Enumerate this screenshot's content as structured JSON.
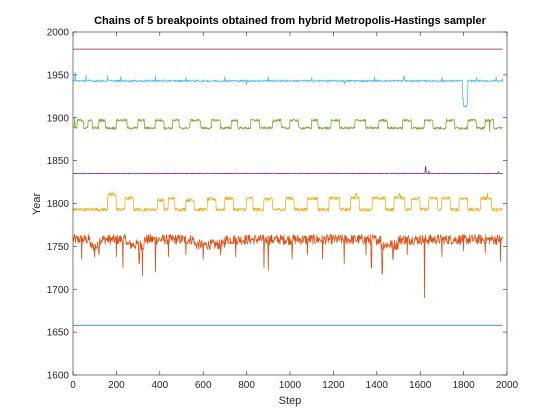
{
  "chart_data": {
    "type": "line",
    "title": "Chains of 5 breakpoints obtained from hybrid Metropolis-Hastings sampler",
    "xlabel": "Step",
    "ylabel": "Year",
    "xlim": [
      0,
      2000
    ],
    "ylim": [
      1600,
      2000
    ],
    "xticks": [
      0,
      200,
      400,
      600,
      800,
      1000,
      1200,
      1400,
      1600,
      1800,
      2000
    ],
    "yticks": [
      1600,
      1650,
      1700,
      1750,
      1800,
      1850,
      1900,
      1950,
      2000
    ],
    "grid": false,
    "legend": "none",
    "steps": 1980,
    "series": [
      {
        "color": "#0072bd",
        "base": 1658,
        "noise": 0,
        "segments": [],
        "spikes": []
      },
      {
        "color": "#d95319",
        "base": 1758,
        "noise": 6,
        "segments": [
          [
            80,
            120,
            1750
          ],
          [
            250,
            330,
            1752
          ],
          [
            560,
            700,
            1752
          ],
          [
            1420,
            1500,
            1752
          ]
        ],
        "spikes": [
          [
            40,
            1735
          ],
          [
            100,
            1738
          ],
          [
            120,
            1740
          ],
          [
            200,
            1738
          ],
          [
            230,
            1725
          ],
          [
            305,
            1730
          ],
          [
            320,
            1716
          ],
          [
            380,
            1720
          ],
          [
            440,
            1738
          ],
          [
            520,
            1740
          ],
          [
            600,
            1735
          ],
          [
            680,
            1740
          ],
          [
            750,
            1738
          ],
          [
            880,
            1725
          ],
          [
            900,
            1722
          ],
          [
            1010,
            1735
          ],
          [
            1080,
            1740
          ],
          [
            1150,
            1735
          ],
          [
            1250,
            1730
          ],
          [
            1350,
            1740
          ],
          [
            1375,
            1725
          ],
          [
            1425,
            1718
          ],
          [
            1475,
            1735
          ],
          [
            1540,
            1740
          ],
          [
            1620,
            1690
          ],
          [
            1700,
            1738
          ],
          [
            1800,
            1745
          ],
          [
            1900,
            1742
          ],
          [
            1970,
            1732
          ]
        ]
      },
      {
        "color": "#edb120",
        "base": 1793,
        "noise": 2,
        "segments": [
          [
            160,
            200,
            1810
          ],
          [
            240,
            280,
            1806
          ],
          [
            390,
            420,
            1804
          ],
          [
            440,
            470,
            1806
          ],
          [
            520,
            560,
            1804
          ],
          [
            620,
            660,
            1805
          ],
          [
            700,
            740,
            1806
          ],
          [
            800,
            830,
            1806
          ],
          [
            880,
            920,
            1805
          ],
          [
            980,
            1020,
            1806
          ],
          [
            1080,
            1130,
            1806
          ],
          [
            1180,
            1230,
            1806
          ],
          [
            1280,
            1320,
            1807
          ],
          [
            1380,
            1440,
            1806
          ],
          [
            1480,
            1530,
            1807
          ],
          [
            1560,
            1600,
            1806
          ],
          [
            1640,
            1680,
            1806
          ],
          [
            1700,
            1740,
            1806
          ],
          [
            1780,
            1820,
            1806
          ],
          [
            1880,
            1930,
            1806
          ]
        ],
        "spikes": [
          [
            180,
            1814
          ],
          [
            1305,
            1812
          ],
          [
            1505,
            1812
          ],
          [
            1910,
            1812
          ],
          [
            1955,
            1790
          ]
        ]
      },
      {
        "color": "#7e2f8e",
        "base": 1835,
        "noise": 0.4,
        "segments": [],
        "spikes": [
          [
            1625,
            1843
          ],
          [
            1640,
            1838
          ],
          [
            1960,
            1837
          ]
        ]
      },
      {
        "color": "#77ac30",
        "base": 1888,
        "noise": 1.5,
        "segments": [
          [
            20,
            50,
            1897
          ],
          [
            70,
            90,
            1897
          ],
          [
            120,
            150,
            1897
          ],
          [
            200,
            250,
            1897
          ],
          [
            300,
            330,
            1897
          ],
          [
            380,
            420,
            1897
          ],
          [
            460,
            490,
            1897
          ],
          [
            540,
            590,
            1897
          ],
          [
            640,
            680,
            1897
          ],
          [
            730,
            760,
            1897
          ],
          [
            820,
            860,
            1897
          ],
          [
            920,
            960,
            1897
          ],
          [
            1000,
            1040,
            1897
          ],
          [
            1100,
            1130,
            1897
          ],
          [
            1190,
            1230,
            1897
          ],
          [
            1300,
            1350,
            1897
          ],
          [
            1410,
            1450,
            1897
          ],
          [
            1520,
            1560,
            1897
          ],
          [
            1620,
            1660,
            1897
          ],
          [
            1720,
            1760,
            1897
          ],
          [
            1820,
            1860,
            1897
          ],
          [
            1900,
            1940,
            1897
          ]
        ],
        "spikes": [
          [
            8,
            1900
          ],
          [
            1920,
            1884
          ]
        ]
      },
      {
        "color": "#4dbeee",
        "base": 1943,
        "noise": 1.2,
        "segments": [
          [
            1795,
            1800,
            1923
          ],
          [
            1800,
            1815,
            1913
          ],
          [
            1815,
            1820,
            1918
          ]
        ],
        "spikes": [
          [
            10,
            1953
          ],
          [
            60,
            1950
          ],
          [
            160,
            1949
          ],
          [
            220,
            1948
          ],
          [
            380,
            1949
          ],
          [
            520,
            1947
          ],
          [
            700,
            1948
          ],
          [
            900,
            1948
          ],
          [
            1100,
            1947
          ],
          [
            1390,
            1948
          ],
          [
            1525,
            1949
          ],
          [
            1700,
            1947
          ],
          [
            1860,
            1947
          ],
          [
            1950,
            1948
          ],
          [
            1980,
            1946
          ],
          [
            800,
            1938
          ],
          [
            1250,
            1939
          ]
        ]
      },
      {
        "color": "#a2142f",
        "base": 1980,
        "noise": 0,
        "segments": [],
        "spikes": []
      }
    ]
  }
}
